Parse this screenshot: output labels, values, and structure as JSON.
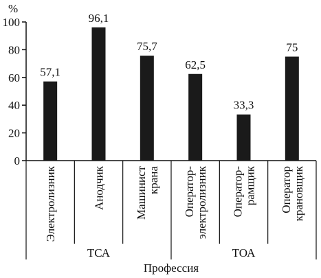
{
  "chart_data": {
    "type": "bar",
    "y_unit_label": "%",
    "xlabel": "Профессия",
    "ylim": [
      0,
      100
    ],
    "yticks": [
      0,
      20,
      40,
      60,
      80,
      100
    ],
    "grid": false,
    "bar_color": "#1a1a1a",
    "categories": [
      {
        "label_lines": [
          "Электролизник"
        ],
        "group": "ТСА",
        "value": 57.1,
        "value_label": "57,1"
      },
      {
        "label_lines": [
          "Анодчик"
        ],
        "group": "ТСА",
        "value": 96.1,
        "value_label": "96,1"
      },
      {
        "label_lines": [
          "Машинист",
          "крана"
        ],
        "group": "ТСА",
        "value": 75.7,
        "value_label": "75,7"
      },
      {
        "label_lines": [
          "Оператор-",
          "электролизник"
        ],
        "group": "ТОА",
        "value": 62.5,
        "value_label": "62,5"
      },
      {
        "label_lines": [
          "Оператор-",
          "рамщик"
        ],
        "group": "ТОА",
        "value": 33.3,
        "value_label": "33,3"
      },
      {
        "label_lines": [
          "Оператор",
          "крановщик"
        ],
        "group": "ТОА",
        "value": 75,
        "value_label": "75"
      }
    ],
    "groups": [
      "ТСА",
      "ТОА"
    ]
  }
}
